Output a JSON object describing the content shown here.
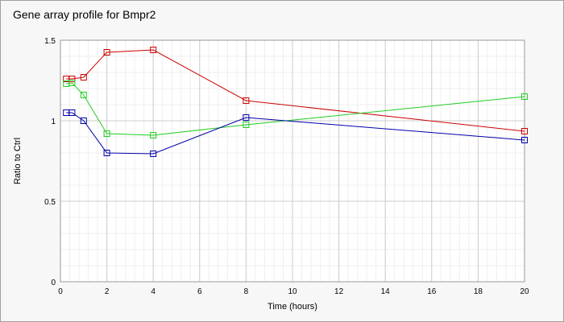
{
  "chart_data": {
    "type": "line",
    "title": "Gene array profile for Bmpr2",
    "xlabel": "Time (hours)",
    "ylabel": "Ratio to Ctrl",
    "xlim": [
      0,
      20
    ],
    "ylim": [
      0,
      1.5
    ],
    "x_ticks": [
      0,
      2,
      4,
      6,
      8,
      10,
      12,
      14,
      16,
      18,
      20
    ],
    "y_ticks": [
      0,
      0.5,
      1,
      1.5
    ],
    "y_tick_labels": [
      "0",
      "0.5",
      "1",
      "1.5"
    ],
    "grid": true,
    "marker": "square",
    "series": [
      {
        "color": "#cc0000",
        "x": [
          0.25,
          0.5,
          1,
          2,
          4,
          8,
          20
        ],
        "y": [
          1.26,
          1.26,
          1.27,
          1.425,
          1.44,
          1.125,
          0.935
        ]
      },
      {
        "color": "#22cc22",
        "x": [
          0.25,
          0.5,
          1,
          2,
          4,
          8,
          20
        ],
        "y": [
          1.23,
          1.235,
          1.16,
          0.92,
          0.91,
          0.975,
          1.15
        ]
      },
      {
        "color": "#0000aa",
        "x": [
          0.25,
          0.5,
          1,
          2,
          4,
          8,
          20
        ],
        "y": [
          1.05,
          1.05,
          1.0,
          0.8,
          0.795,
          1.02,
          0.88
        ]
      }
    ]
  }
}
